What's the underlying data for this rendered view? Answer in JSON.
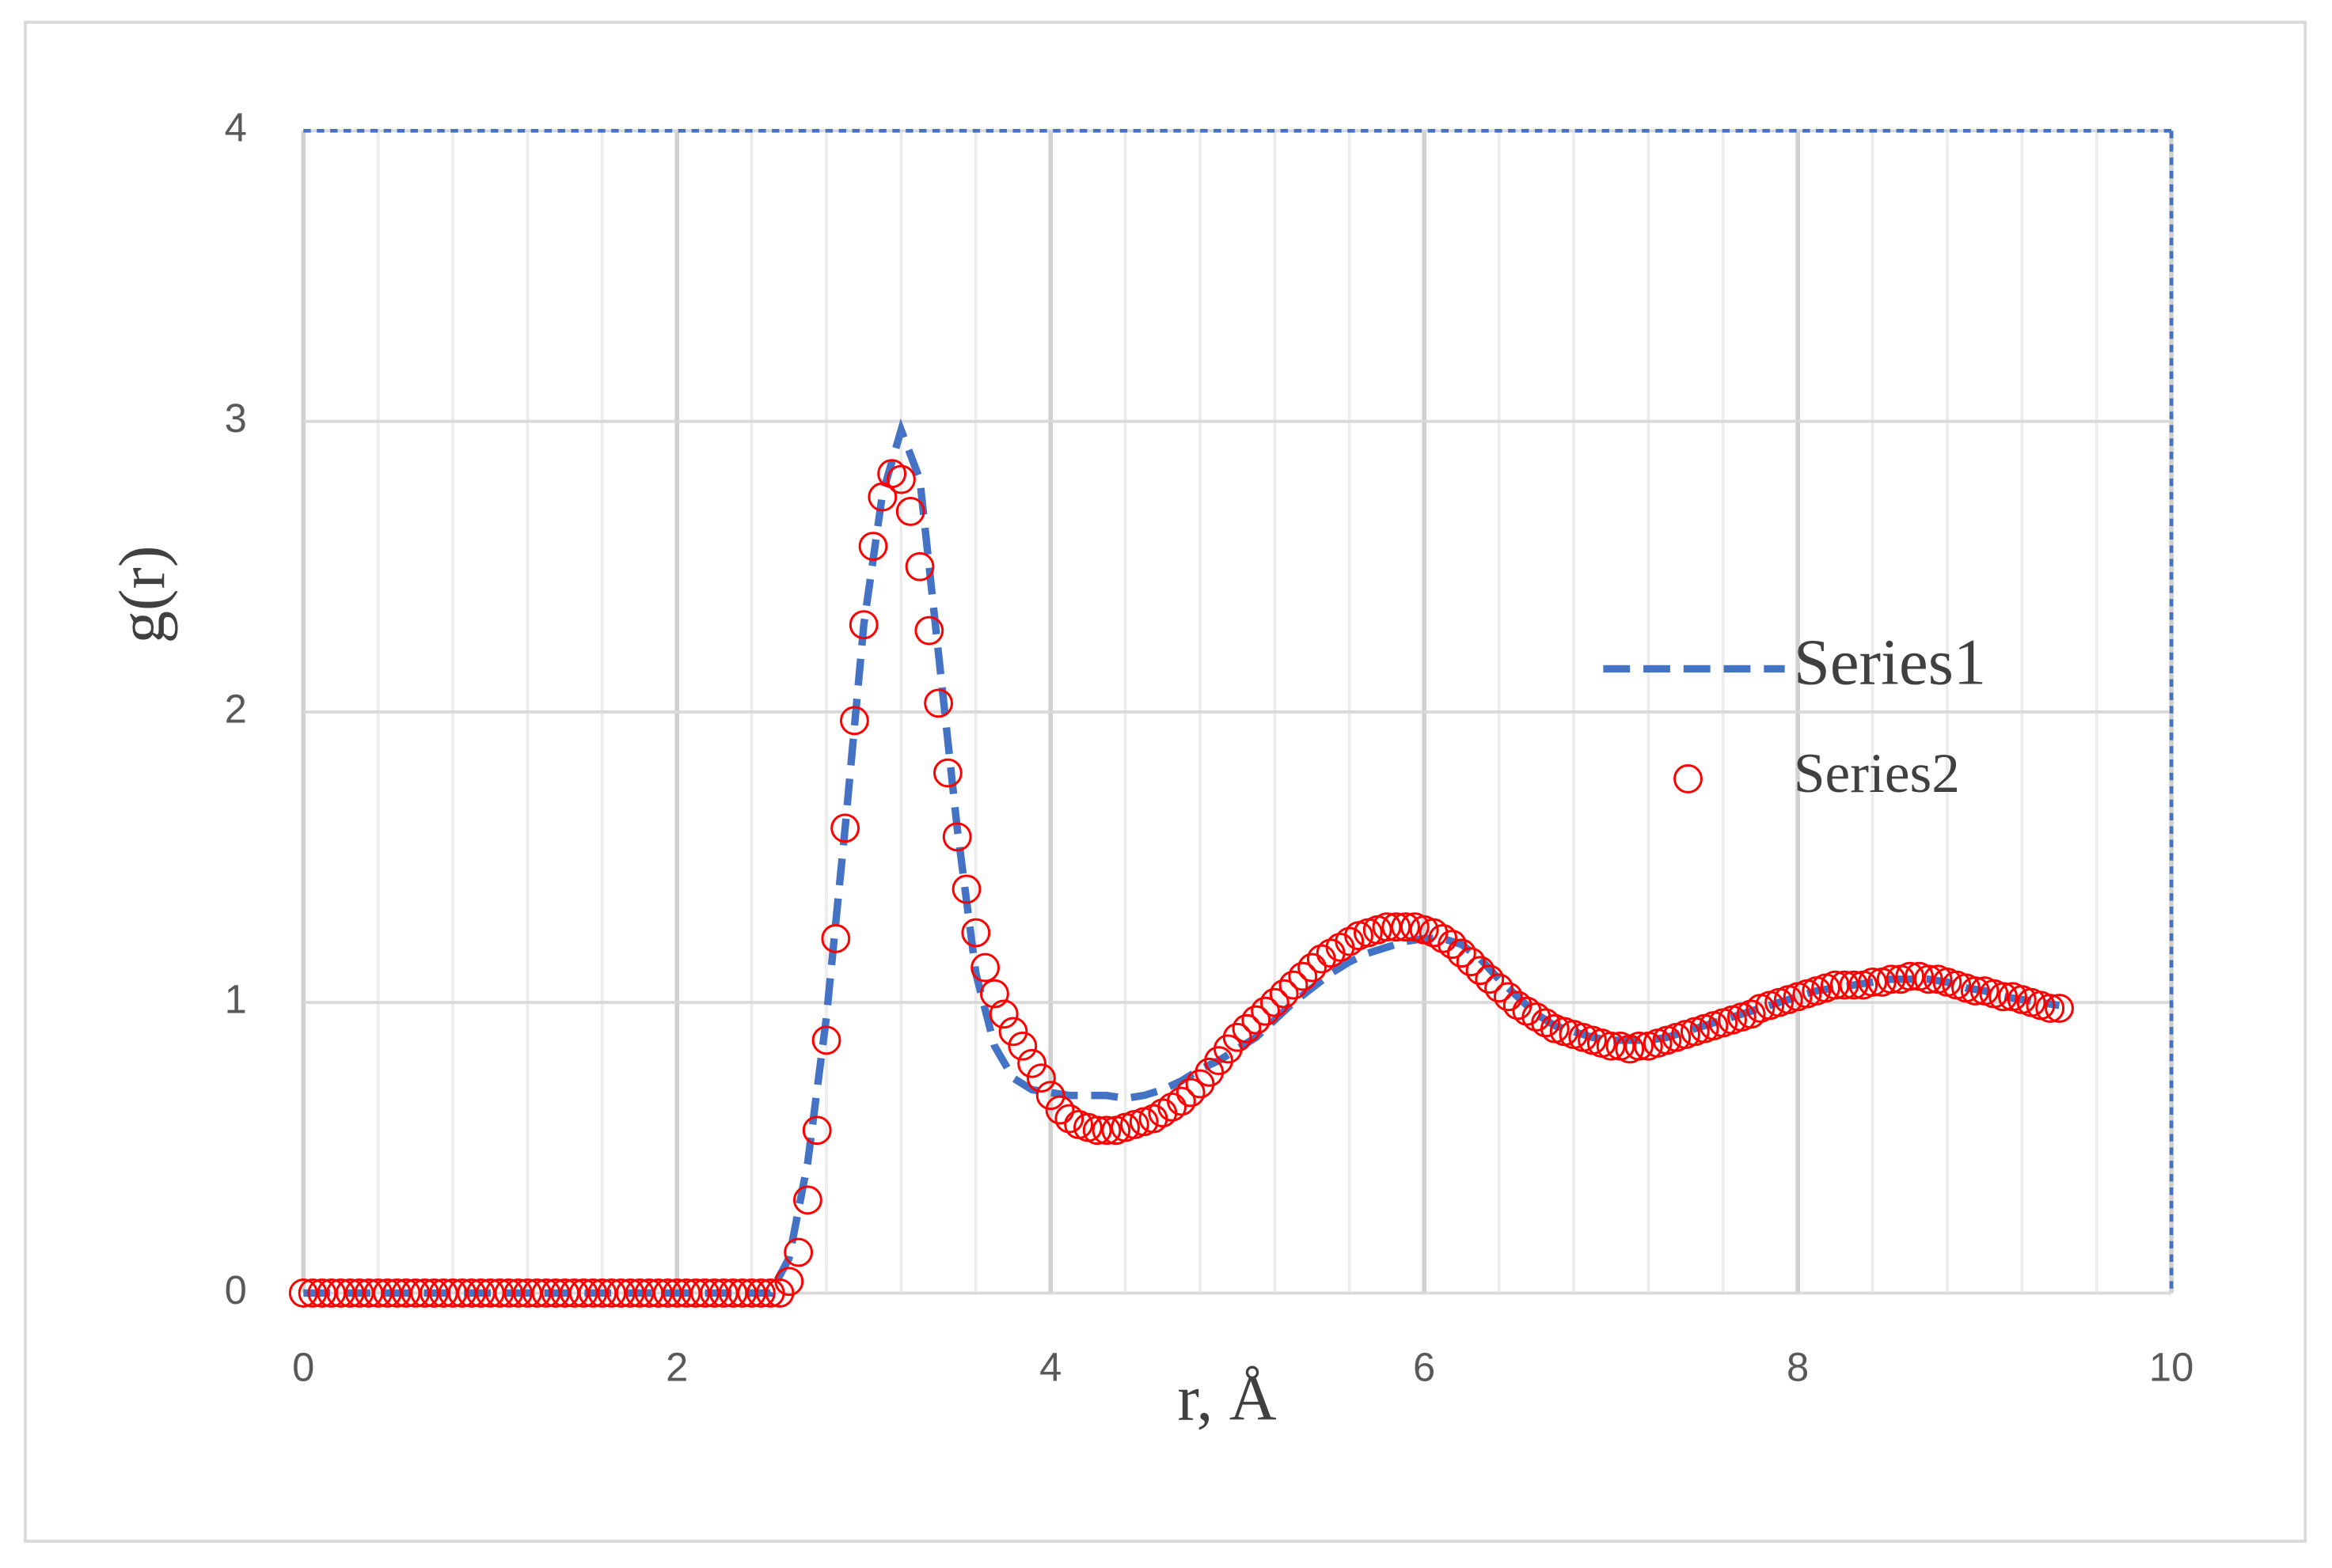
{
  "chart_data": {
    "type": "scatter",
    "xlabel": "r, Å",
    "ylabel": "g(r)",
    "xlim": [
      0,
      10
    ],
    "ylim": [
      0,
      4
    ],
    "xticks": [
      0,
      2,
      4,
      6,
      8,
      10
    ],
    "yticks": [
      0,
      1,
      2,
      3,
      4
    ],
    "xminorticks": [
      0.4,
      0.8,
      1.2,
      1.6,
      2.4,
      2.8,
      3.2,
      3.6,
      4.4,
      4.8,
      5.2,
      5.6,
      6.4,
      6.8,
      7.2,
      7.6,
      8.4,
      8.8,
      9.2,
      9.6
    ],
    "grid": true,
    "legend": "right",
    "series": [
      {
        "name": "Series1",
        "color": "#4472c4",
        "style": "dashed-line",
        "x": [
          0,
          0.1,
          0.2,
          0.3,
          0.4,
          0.5,
          0.6,
          0.7,
          0.8,
          0.9,
          1,
          1.1,
          1.2,
          1.3,
          1.4,
          1.5,
          1.6,
          1.7,
          1.8,
          1.9,
          2,
          2.1,
          2.2,
          2.3,
          2.4,
          2.5,
          2.6,
          2.7,
          2.8,
          2.9,
          3,
          3.1,
          3.2,
          3.3,
          3.4,
          3.5,
          3.6,
          3.7,
          3.8,
          3.9,
          4,
          4.1,
          4.2,
          4.3,
          4.4,
          4.5,
          4.6,
          4.7,
          4.8,
          4.9,
          5,
          5.1,
          5.2,
          5.3,
          5.4,
          5.5,
          5.6,
          5.7,
          5.8,
          5.9,
          6,
          6.1,
          6.2,
          6.3,
          6.4,
          6.5,
          6.6,
          6.7,
          6.8,
          6.9,
          7,
          7.1,
          7.2,
          7.3,
          7.4,
          7.5,
          7.6,
          7.7,
          7.8,
          7.9,
          8,
          8.1,
          8.2,
          8.3,
          8.4,
          8.5,
          8.6,
          8.7,
          8.8,
          8.9,
          9,
          9.1,
          9.2,
          9.3,
          9.4
        ],
        "values": [
          0,
          0,
          0,
          0,
          0,
          0,
          0,
          0,
          0,
          0,
          0,
          0,
          0,
          0,
          0,
          0,
          0,
          0,
          0,
          0,
          0,
          0,
          0,
          0,
          0,
          0,
          0.12,
          0.45,
          0.95,
          1.6,
          2.3,
          2.75,
          2.97,
          2.8,
          2.2,
          1.6,
          1.1,
          0.85,
          0.74,
          0.7,
          0.69,
          0.68,
          0.68,
          0.68,
          0.67,
          0.68,
          0.7,
          0.73,
          0.77,
          0.8,
          0.84,
          0.88,
          0.94,
          1.0,
          1.05,
          1.1,
          1.14,
          1.17,
          1.19,
          1.21,
          1.22,
          1.22,
          1.2,
          1.15,
          1.08,
          1.02,
          0.96,
          0.92,
          0.9,
          0.88,
          0.87,
          0.87,
          0.87,
          0.88,
          0.9,
          0.92,
          0.94,
          0.96,
          0.98,
          1.0,
          1.02,
          1.04,
          1.05,
          1.06,
          1.07,
          1.08,
          1.08,
          1.08,
          1.07,
          1.05,
          1.04,
          1.02,
          1.01,
          1.0,
          0.99
        ]
      },
      {
        "name": "Series2",
        "color": "#ff0000",
        "style": "open-circle",
        "x": [
          0,
          0.05,
          0.1,
          0.15,
          0.2,
          0.25,
          0.3,
          0.35,
          0.4,
          0.45,
          0.5,
          0.55,
          0.6,
          0.65,
          0.7,
          0.75,
          0.8,
          0.85,
          0.9,
          0.95,
          1,
          1.05,
          1.1,
          1.15,
          1.2,
          1.25,
          1.3,
          1.35,
          1.4,
          1.45,
          1.5,
          1.55,
          1.6,
          1.65,
          1.7,
          1.75,
          1.8,
          1.85,
          1.9,
          1.95,
          2,
          2.05,
          2.1,
          2.15,
          2.2,
          2.25,
          2.3,
          2.35,
          2.4,
          2.45,
          2.5,
          2.55,
          2.6,
          2.65,
          2.7,
          2.75,
          2.8,
          2.85,
          2.9,
          2.95,
          3,
          3.05,
          3.1,
          3.15,
          3.2,
          3.25,
          3.3,
          3.35,
          3.4,
          3.45,
          3.5,
          3.55,
          3.6,
          3.65,
          3.7,
          3.75,
          3.8,
          3.85,
          3.9,
          3.95,
          4,
          4.05,
          4.1,
          4.15,
          4.2,
          4.25,
          4.3,
          4.35,
          4.4,
          4.45,
          4.5,
          4.55,
          4.6,
          4.65,
          4.7,
          4.75,
          4.8,
          4.85,
          4.9,
          4.95,
          5,
          5.05,
          5.1,
          5.15,
          5.2,
          5.25,
          5.3,
          5.35,
          5.4,
          5.45,
          5.5,
          5.55,
          5.6,
          5.65,
          5.7,
          5.75,
          5.8,
          5.85,
          5.9,
          5.95,
          6,
          6.05,
          6.1,
          6.15,
          6.2,
          6.25,
          6.3,
          6.35,
          6.4,
          6.45,
          6.5,
          6.55,
          6.6,
          6.65,
          6.7,
          6.75,
          6.8,
          6.85,
          6.9,
          6.95,
          7,
          7.05,
          7.1,
          7.15,
          7.2,
          7.25,
          7.3,
          7.35,
          7.4,
          7.45,
          7.5,
          7.55,
          7.6,
          7.65,
          7.7,
          7.75,
          7.8,
          7.85,
          7.9,
          7.95,
          8,
          8.05,
          8.1,
          8.15,
          8.2,
          8.25,
          8.3,
          8.35,
          8.4,
          8.45,
          8.5,
          8.55,
          8.6,
          8.65,
          8.7,
          8.75,
          8.8,
          8.85,
          8.9,
          8.95,
          9,
          9.05,
          9.1,
          9.15,
          9.2,
          9.25,
          9.3,
          9.35,
          9.4
        ],
        "values": [
          0,
          0,
          0,
          0,
          0,
          0,
          0,
          0,
          0,
          0,
          0,
          0,
          0,
          0,
          0,
          0,
          0,
          0,
          0,
          0,
          0,
          0,
          0,
          0,
          0,
          0,
          0,
          0,
          0,
          0,
          0,
          0,
          0,
          0,
          0,
          0,
          0,
          0,
          0,
          0,
          0,
          0,
          0,
          0,
          0,
          0,
          0,
          0,
          0,
          0,
          0,
          0,
          0.04,
          0.14,
          0.32,
          0.56,
          0.87,
          1.22,
          1.6,
          1.97,
          2.3,
          2.57,
          2.74,
          2.82,
          2.8,
          2.69,
          2.5,
          2.28,
          2.03,
          1.79,
          1.57,
          1.39,
          1.24,
          1.12,
          1.03,
          0.96,
          0.9,
          0.85,
          0.79,
          0.74,
          0.68,
          0.63,
          0.6,
          0.58,
          0.57,
          0.56,
          0.56,
          0.56,
          0.57,
          0.58,
          0.59,
          0.6,
          0.62,
          0.64,
          0.66,
          0.69,
          0.72,
          0.76,
          0.8,
          0.84,
          0.88,
          0.91,
          0.94,
          0.97,
          1.0,
          1.03,
          1.06,
          1.09,
          1.12,
          1.15,
          1.17,
          1.19,
          1.21,
          1.23,
          1.24,
          1.25,
          1.26,
          1.26,
          1.26,
          1.26,
          1.25,
          1.24,
          1.22,
          1.2,
          1.17,
          1.14,
          1.11,
          1.08,
          1.05,
          1.02,
          0.99,
          0.97,
          0.95,
          0.93,
          0.91,
          0.9,
          0.89,
          0.88,
          0.87,
          0.86,
          0.85,
          0.85,
          0.84,
          0.85,
          0.85,
          0.86,
          0.87,
          0.88,
          0.89,
          0.9,
          0.91,
          0.92,
          0.93,
          0.94,
          0.95,
          0.96,
          0.98,
          0.99,
          1.0,
          1.01,
          1.02,
          1.03,
          1.04,
          1.05,
          1.06,
          1.06,
          1.06,
          1.06,
          1.07,
          1.07,
          1.08,
          1.08,
          1.09,
          1.09,
          1.08,
          1.08,
          1.07,
          1.06,
          1.05,
          1.04,
          1.04,
          1.03,
          1.02,
          1.02,
          1.01,
          1.0,
          0.99,
          0.98,
          0.98
        ]
      }
    ]
  }
}
